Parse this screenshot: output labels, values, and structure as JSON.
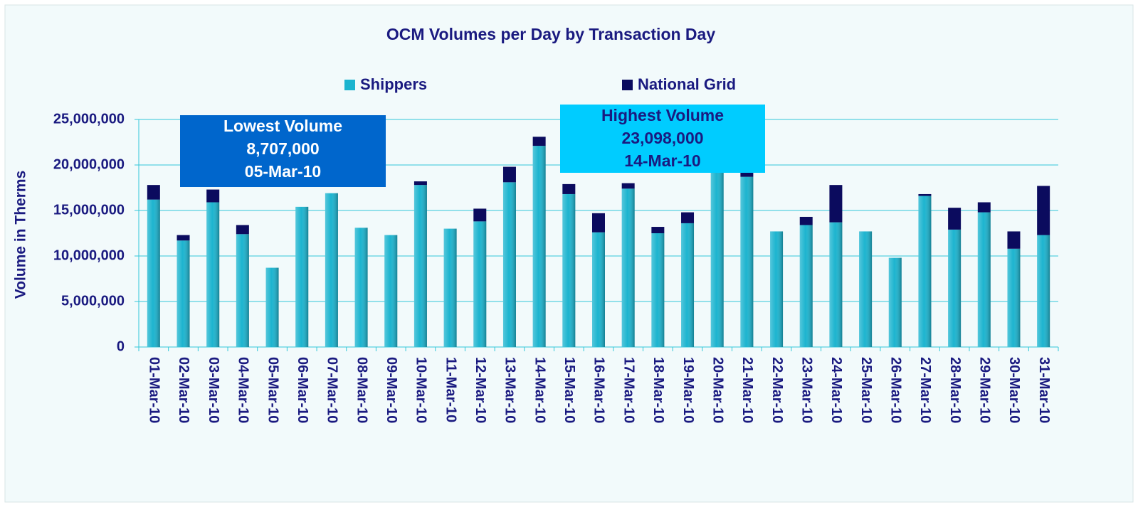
{
  "chart_data": {
    "type": "stacked_bar",
    "title": "OCM Volumes per Day by Transaction Day",
    "ylabel": "Volume in Therms",
    "legend": "top",
    "grid": true,
    "categories": [
      "01-Mar-10",
      "02-Mar-10",
      "03-Mar-10",
      "04-Mar-10",
      "05-Mar-10",
      "06-Mar-10",
      "07-Mar-10",
      "08-Mar-10",
      "09-Mar-10",
      "10-Mar-10",
      "11-Mar-10",
      "12-Mar-10",
      "13-Mar-10",
      "14-Mar-10",
      "15-Mar-10",
      "16-Mar-10",
      "17-Mar-10",
      "18-Mar-10",
      "19-Mar-10",
      "20-Mar-10",
      "21-Mar-10",
      "22-Mar-10",
      "23-Mar-10",
      "24-Mar-10",
      "25-Mar-10",
      "26-Mar-10",
      "27-Mar-10",
      "28-Mar-10",
      "29-Mar-10",
      "30-Mar-10",
      "31-Mar-10"
    ],
    "series": [
      {
        "name": "Shippers",
        "color": "#1cb4cf",
        "values": [
          16200000,
          11700000,
          15900000,
          12400000,
          8707000,
          15400000,
          16900000,
          13100000,
          12300000,
          17800000,
          13000000,
          13800000,
          18100000,
          22100000,
          16800000,
          12600000,
          17400000,
          12500000,
          13600000,
          19500000,
          18700000,
          12700000,
          13400000,
          13700000,
          12700000,
          9800000,
          16600000,
          12900000,
          14800000,
          10800000,
          12300000
        ]
      },
      {
        "name": "National Grid",
        "color": "#0b0b5e",
        "values": [
          1600000,
          600000,
          1400000,
          1000000,
          0,
          0,
          0,
          0,
          0,
          400000,
          0,
          1400000,
          1700000,
          998000,
          1100000,
          2100000,
          600000,
          700000,
          1200000,
          0,
          500000,
          0,
          900000,
          4100000,
          0,
          0,
          200000,
          2400000,
          1100000,
          1900000,
          5400000
        ]
      }
    ],
    "ylim": [
      0,
      25000000
    ],
    "yticks": [
      0,
      {
        "value": 5000000,
        "label": "5,000,000"
      },
      {
        "value": 10000000,
        "label": "10,000,000"
      },
      {
        "value": 15000000,
        "label": "15,000,000"
      },
      {
        "value": 20000000,
        "label": "20,000,000"
      },
      {
        "value": 25000000,
        "label": "25,000,000"
      }
    ],
    "annotations": [
      {
        "lines": [
          "Lowest Volume",
          "8,707,000",
          "05-Mar-10"
        ],
        "color": "#0066cc",
        "text_color": "#ffffff"
      },
      {
        "lines": [
          "Highest Volume",
          "23,098,000",
          "14-Mar-10"
        ],
        "color": "#00ccff",
        "text_color": "#1a1a80"
      }
    ]
  }
}
